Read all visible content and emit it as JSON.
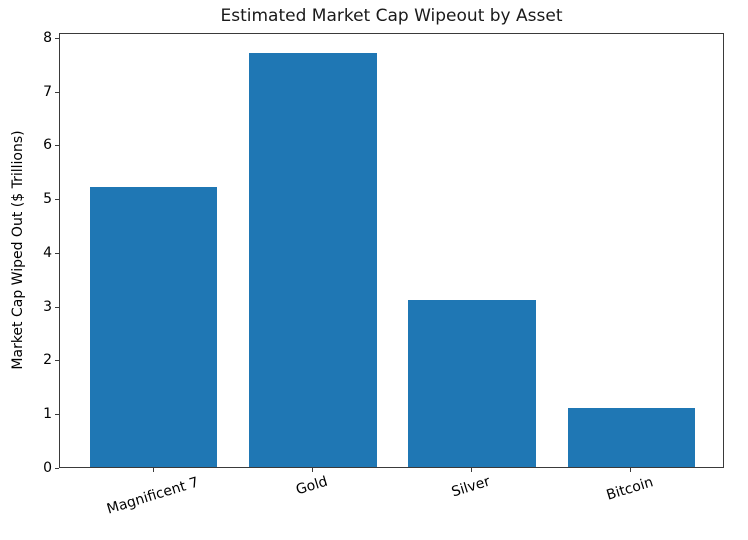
{
  "chart_data": {
    "type": "bar",
    "title": "Estimated Market Cap Wipeout by Asset",
    "xlabel": "",
    "ylabel": "Market Cap Wiped Out ($ Trillions)",
    "categories": [
      "Magnificent 7",
      "Gold",
      "Silver",
      "Bitcoin"
    ],
    "values": [
      5.2,
      7.7,
      3.1,
      1.1
    ],
    "ylim": [
      0,
      8.09
    ],
    "yticks": [
      0,
      1,
      2,
      3,
      4,
      5,
      6,
      7,
      8
    ],
    "xtick_rotation_deg": 17,
    "bar_color": "#1f77b4",
    "text_color": "#000000",
    "spine_color": "#3a3a3a",
    "background_color": "#ffffff",
    "grid": false,
    "legend_position": "none"
  }
}
